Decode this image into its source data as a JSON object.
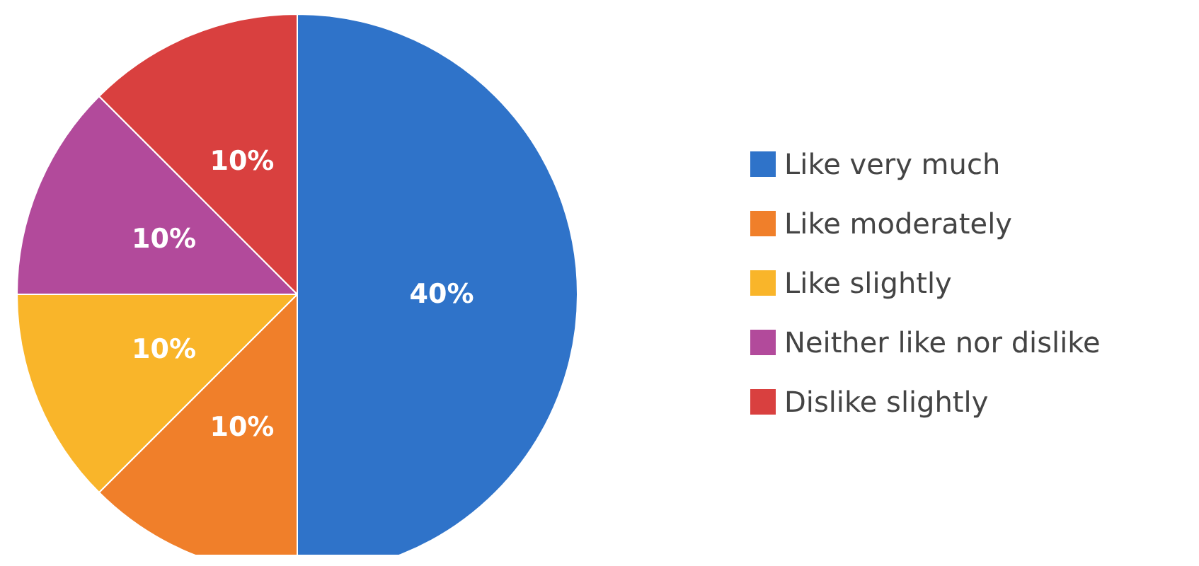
{
  "chart_data": {
    "type": "pie",
    "categories": [
      "Like very much",
      "Like moderately",
      "Like slightly",
      "Neither like nor dislike",
      "Dislike slightly"
    ],
    "values": [
      40,
      10,
      10,
      10,
      10
    ],
    "value_labels": [
      "40%",
      "10%",
      "10%",
      "10%",
      "10%"
    ],
    "colors": [
      "#2f73c9",
      "#f07f2a",
      "#f9b52a",
      "#b24a9b",
      "#d9403f"
    ],
    "legend": "right"
  }
}
